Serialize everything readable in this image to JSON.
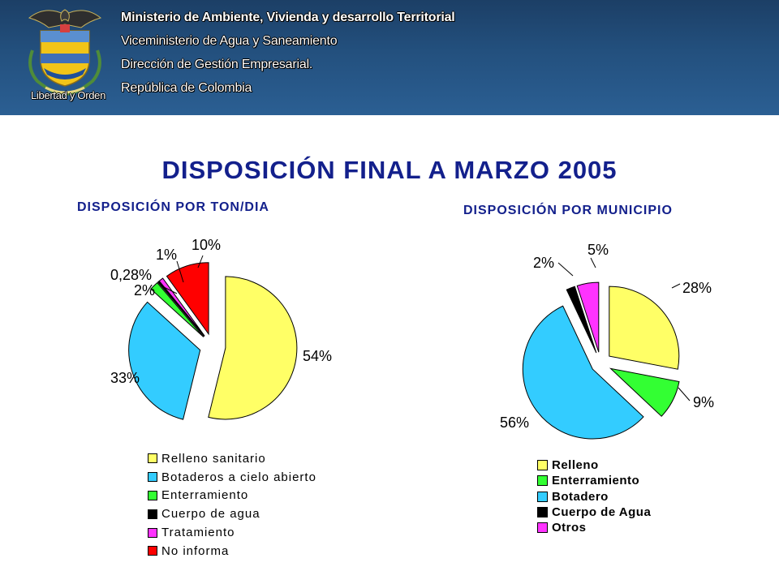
{
  "header": {
    "motto": "Libertad y Orden",
    "lines": [
      "Ministerio de Ambiente, Vivienda y desarrollo Territorial",
      "Viceministerio de Agua y Saneamiento",
      "Dirección de Gestión Empresarial.",
      "República de Colombia"
    ]
  },
  "title": "DISPOSICIÓN FINAL A MARZO 2005",
  "colors": {
    "header": "#23507e",
    "title": "#13208c",
    "yellow": "#ffff66",
    "cyan": "#33ccff",
    "green": "#33ff33",
    "black": "#000000",
    "magenta": "#ff33ff",
    "red": "#ff0000"
  },
  "chart_data": [
    {
      "type": "pie",
      "title": "DISPOSICIÓN POR TON/DIA",
      "labels": [
        "Relleno sanitario",
        "Botaderos a cielo abierto",
        "Enterramiento",
        "Cuerpo de agua",
        "Tratamiento",
        "No informa"
      ],
      "values": [
        54,
        33,
        2,
        0.28,
        1,
        10
      ],
      "value_labels": [
        "54%",
        "33%",
        "2%",
        "0,28%",
        "1%",
        "10%"
      ],
      "colors": [
        "#ffff66",
        "#33ccff",
        "#33ff33",
        "#000000",
        "#ff33ff",
        "#ff0000"
      ],
      "legend": "bottom"
    },
    {
      "type": "pie",
      "title": "DISPOSICIÓN POR MUNICIPIO",
      "labels": [
        "Relleno",
        "Enterramiento",
        "Botadero",
        "Cuerpo de Agua",
        "Otros"
      ],
      "values": [
        28,
        9,
        56,
        2,
        5
      ],
      "value_labels": [
        "28%",
        "9%",
        "56%",
        "2%",
        "5%"
      ],
      "colors": [
        "#ffff66",
        "#33ff33",
        "#33ccff",
        "#000000",
        "#ff33ff"
      ],
      "legend": "bottom"
    }
  ]
}
